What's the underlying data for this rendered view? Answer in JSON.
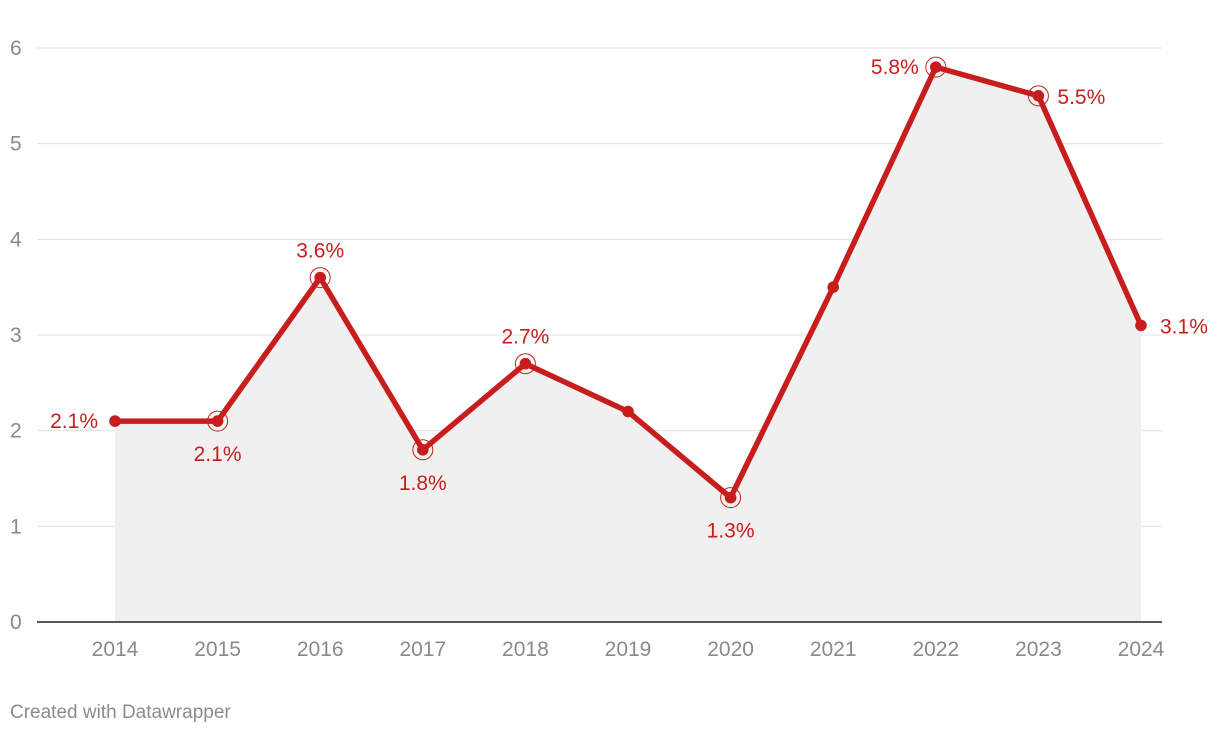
{
  "chart_data": {
    "type": "line",
    "x": [
      "2014",
      "2015",
      "2016",
      "2017",
      "2018",
      "2019",
      "2020",
      "2021",
      "2022",
      "2023",
      "2024"
    ],
    "series": [
      {
        "values": [
          2.1,
          2.1,
          3.6,
          1.8,
          2.7,
          2.2,
          1.3,
          3.5,
          5.8,
          5.5,
          3.1
        ]
      }
    ],
    "labels": [
      {
        "x": "2014",
        "text": "2.1%",
        "position": "left"
      },
      {
        "x": "2015",
        "text": "2.1%",
        "position": "below"
      },
      {
        "x": "2016",
        "text": "3.6%",
        "position": "above"
      },
      {
        "x": "2017",
        "text": "1.8%",
        "position": "below"
      },
      {
        "x": "2018",
        "text": "2.7%",
        "position": "above"
      },
      {
        "x": "2020",
        "text": "1.3%",
        "position": "below"
      },
      {
        "x": "2022",
        "text": "5.8%",
        "position": "left"
      },
      {
        "x": "2023",
        "text": "5.5%",
        "position": "right"
      },
      {
        "x": "2024",
        "text": "3.1%",
        "position": "right"
      }
    ],
    "highlighted": [
      "2015",
      "2016",
      "2017",
      "2018",
      "2020",
      "2022",
      "2023"
    ],
    "yticks": [
      "0",
      "1",
      "2",
      "3",
      "4",
      "5",
      "6"
    ],
    "ylim": [
      0,
      6
    ],
    "grid": true,
    "area_fill": true,
    "title": "",
    "xlabel": "",
    "ylabel": ""
  },
  "colors": {
    "line": "#c71e1d",
    "area": "#f0f0f0",
    "grid": "#e0e0e0",
    "axis": "#222222"
  },
  "footer": {
    "credit": "Created with Datawrapper"
  }
}
